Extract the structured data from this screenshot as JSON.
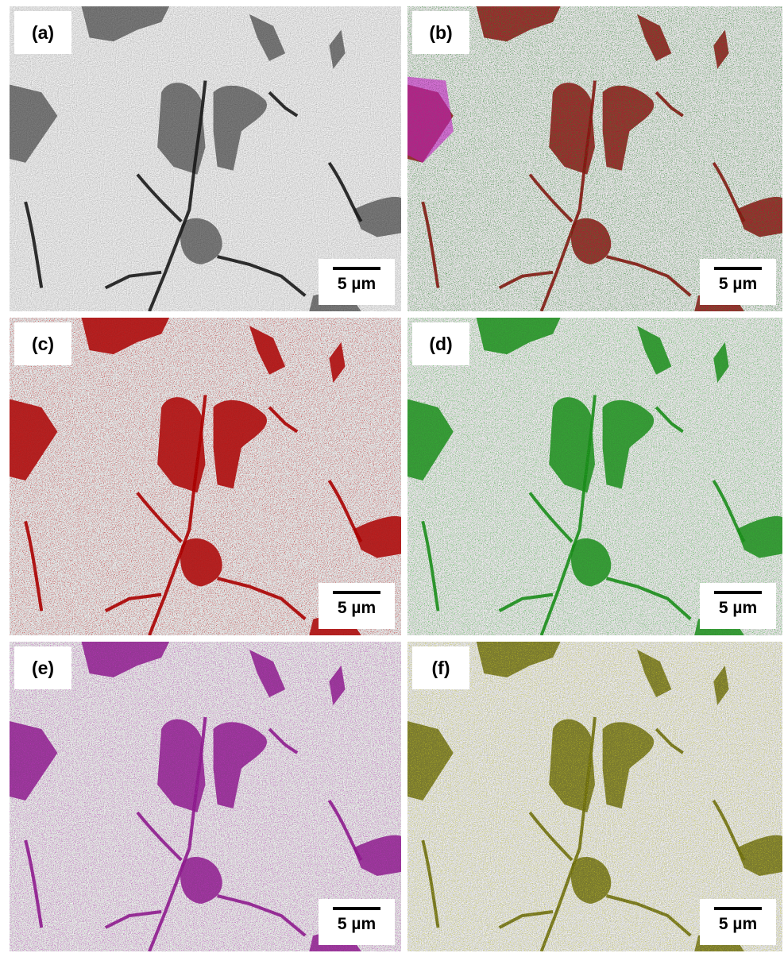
{
  "panels": [
    {
      "label": "(a)",
      "scale_bar": "5 µm"
    },
    {
      "label": "(b)",
      "scale_bar": "5 µm"
    },
    {
      "label": "(c)",
      "scale_bar": "5 µm"
    },
    {
      "label": "(d)",
      "scale_bar": "5 µm"
    },
    {
      "label": "(e)",
      "scale_bar": "5 µm"
    },
    {
      "label": "(f)",
      "scale_bar": "5 µm"
    }
  ]
}
